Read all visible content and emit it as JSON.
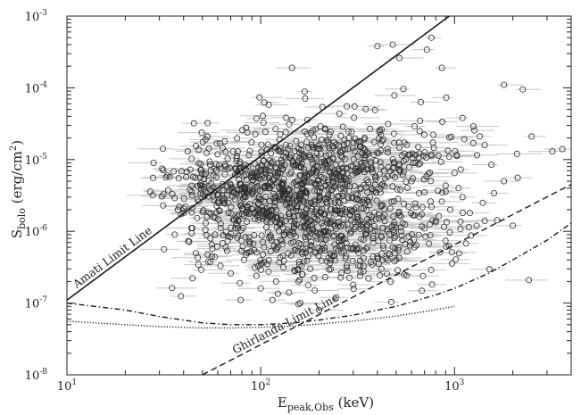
{
  "chart_data": {
    "type": "scatter",
    "title": "",
    "xlabel": "E",
    "xlabel_sub": "peak,Obs",
    "xlabel_unit": " (keV)",
    "ylabel": "S",
    "ylabel_sub": "bolo",
    "ylabel_unit": " (erg/cm",
    "ylabel_unit_sup": "2",
    "ylabel_unit_end": ")",
    "x_scale": "log",
    "y_scale": "log",
    "xlim": [
      10,
      4000
    ],
    "ylim": [
      1e-08,
      0.001
    ],
    "grid": false,
    "x_ticks": [
      {
        "value": 10,
        "base": "10",
        "exp": "1"
      },
      {
        "value": 100,
        "base": "10",
        "exp": "2"
      },
      {
        "value": 1000,
        "base": "10",
        "exp": "3"
      }
    ],
    "y_ticks": [
      {
        "value": 1e-08,
        "base": "10",
        "exp": "-8"
      },
      {
        "value": 1e-07,
        "base": "10",
        "exp": "-7"
      },
      {
        "value": 1e-06,
        "base": "10",
        "exp": "-6"
      },
      {
        "value": 1e-05,
        "base": "10",
        "exp": "-5"
      },
      {
        "value": 0.0001,
        "base": "10",
        "exp": "-4"
      },
      {
        "value": 0.001,
        "base": "10",
        "exp": "-3"
      }
    ],
    "lines": [
      {
        "name": "Amati Limit Line",
        "style": "solid",
        "x": [
          10,
          940
        ],
        "y": [
          1.1e-07,
          0.001
        ]
      },
      {
        "name": "Ghirlanda Limit Line",
        "style": "dashed",
        "x": [
          50,
          4000
        ],
        "y": [
          1e-08,
          4.5e-06
        ]
      },
      {
        "name": "",
        "style": "dashdot",
        "x": [
          10,
          20,
          30,
          50,
          70,
          100,
          150,
          200,
          300,
          500,
          800,
          1000,
          1500,
          2000,
          3000,
          4000
        ],
        "y": [
          1e-07,
          8e-08,
          6.5e-08,
          5.3e-08,
          5e-08,
          5e-08,
          5.3e-08,
          5.8e-08,
          6.8e-08,
          9e-08,
          1.3e-07,
          1.6e-07,
          2.6e-07,
          4e-07,
          7.5e-07,
          1.3e-06
        ]
      },
      {
        "name": "",
        "style": "dotted",
        "x": [
          10,
          20,
          30,
          50,
          70,
          100,
          150,
          200,
          300,
          500,
          700,
          1000
        ],
        "y": [
          5.6e-08,
          5e-08,
          4.7e-08,
          4.5e-08,
          4.5e-08,
          4.6e-08,
          4.8e-08,
          5.1e-08,
          5.6e-08,
          6.6e-08,
          7.6e-08,
          9e-08
        ]
      }
    ],
    "markers": "open circle",
    "errorbars": "horizontal, light gray",
    "points": [
      [
        53,
        2.1e-05
      ],
      [
        145,
        0.00019
      ],
      [
        110,
        5.8e-05
      ],
      [
        305,
        5.5e-05
      ],
      [
        400,
        0.00038
      ],
      [
        480,
        0.0004
      ],
      [
        520,
        0.00026
      ],
      [
        720,
        0.00034
      ],
      [
        860,
        0.00019
      ],
      [
        760,
        0.0005
      ],
      [
        1350,
        2.1e-05
      ],
      [
        1800,
        0.00011
      ],
      [
        2250,
        9.5e-05
      ],
      [
        2500,
        2.1e-05
      ],
      [
        3200,
        1.3e-05
      ],
      [
        2100,
        1.2e-05
      ],
      [
        1550,
        8.5e-06
      ],
      [
        1250,
        1.7e-05
      ],
      [
        1100,
        3.8e-05
      ],
      [
        3600,
        1.4e-05
      ],
      [
        33,
        6e-06
      ],
      [
        35,
        3.3e-06
      ],
      [
        36,
        9e-07
      ],
      [
        40,
        1.8e-06
      ],
      [
        31,
        7.5e-06
      ],
      [
        28,
        9e-06
      ],
      [
        42,
        1.3e-05
      ],
      [
        46,
        5.6e-06
      ],
      [
        38,
        2.2e-06
      ],
      [
        44,
        9.4e-07
      ],
      [
        48,
        2.6e-06
      ],
      [
        52,
        1.3e-06
      ],
      [
        55,
        8e-07
      ],
      [
        58,
        4.4e-07
      ],
      [
        62,
        3.3e-07
      ],
      [
        66,
        6e-07
      ],
      [
        70,
        2.6e-07
      ],
      [
        74,
        1.1e-06
      ],
      [
        78,
        1.9e-07
      ],
      [
        82,
        4e-07
      ],
      [
        88,
        7e-07
      ],
      [
        95,
        2.4e-07
      ],
      [
        100,
        1.6e-07
      ],
      [
        108,
        3.5e-07
      ],
      [
        115,
        1.1e-07
      ],
      [
        120,
        2e-07
      ],
      [
        130,
        4.6e-07
      ],
      [
        140,
        1.4e-07
      ],
      [
        150,
        2.8e-07
      ],
      [
        160,
        1e-07
      ],
      [
        170,
        5e-07
      ],
      [
        180,
        3e-07
      ],
      [
        190,
        1.5e-07
      ],
      [
        200,
        8e-08
      ],
      [
        215,
        2.3e-07
      ],
      [
        230,
        4e-07
      ],
      [
        245,
        1.2e-07
      ],
      [
        260,
        6.5e-07
      ],
      [
        280,
        2.8e-07
      ],
      [
        300,
        1.8e-07
      ],
      [
        320,
        5e-07
      ],
      [
        340,
        3.3e-07
      ],
      [
        360,
        2.2e-07
      ],
      [
        380,
        8e-07
      ],
      [
        400,
        4.5e-07
      ],
      [
        420,
        3e-07
      ],
      [
        450,
        1e-06
      ],
      [
        480,
        6e-07
      ],
      [
        500,
        4e-07
      ],
      [
        540,
        1.3e-06
      ],
      [
        580,
        8.5e-07
      ],
      [
        620,
        6e-07
      ],
      [
        660,
        1.6e-06
      ],
      [
        700,
        1.1e-06
      ],
      [
        760,
        2.2e-06
      ],
      [
        800,
        1.4e-06
      ],
      [
        860,
        2.6e-06
      ],
      [
        900,
        3.6e-06
      ],
      [
        950,
        2e-06
      ],
      [
        1000,
        6.5e-06
      ],
      [
        1050,
        4e-06
      ],
      [
        1100,
        3e-06
      ],
      [
        1200,
        1.8e-06
      ],
      [
        1300,
        1.2e-06
      ],
      [
        1400,
        2.5e-06
      ],
      [
        1600,
        3.4e-06
      ],
      [
        1800,
        5e-06
      ],
      [
        2000,
        1.2e-06
      ],
      [
        700,
        3.5e-06
      ],
      [
        600,
        5e-06
      ]
    ],
    "cloud": [
      {
        "cx": 130,
        "cy": 4e-06,
        "sx": 0.3,
        "sy": 0.4,
        "n": 760,
        "seed": 11
      },
      {
        "cx": 230,
        "cy": 8e-07,
        "sx": 0.3,
        "sy": 0.36,
        "n": 380,
        "seed": 23
      },
      {
        "cx": 350,
        "cy": 1.2e-05,
        "sx": 0.27,
        "sy": 0.28,
        "n": 210,
        "seed": 37
      }
    ]
  }
}
